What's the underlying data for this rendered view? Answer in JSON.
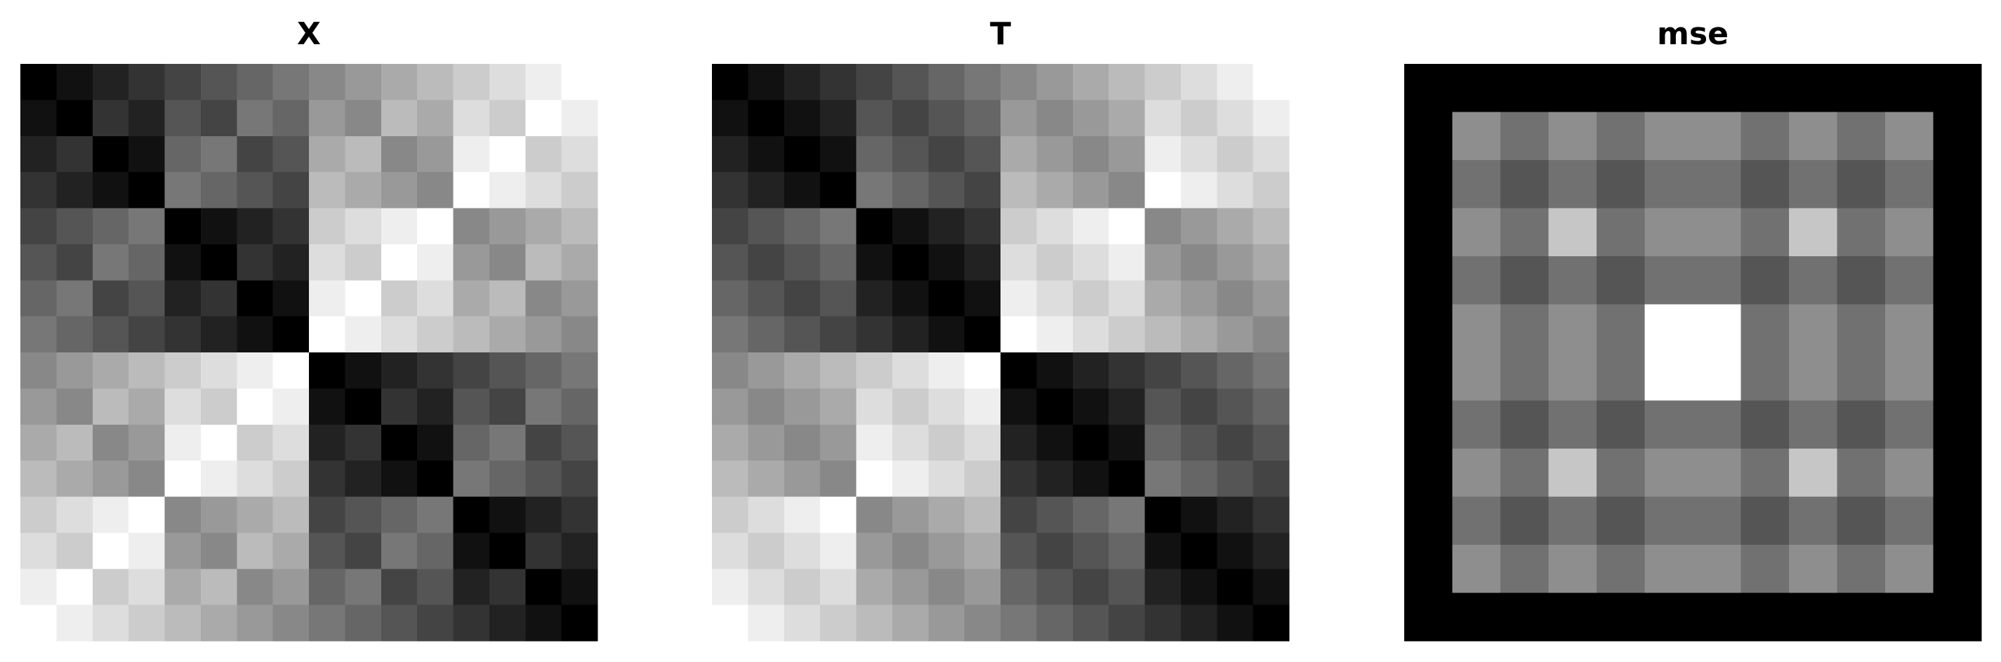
{
  "chart_data": [
    {
      "type": "heatmap",
      "title": "X",
      "colormap": "gray",
      "values": [
        [
          0,
          1,
          2,
          3,
          4,
          5,
          6,
          7,
          8,
          9,
          10,
          11,
          12,
          13,
          14,
          15
        ],
        [
          1,
          0,
          3,
          2,
          5,
          4,
          7,
          6,
          9,
          8,
          11,
          10,
          13,
          12,
          15,
          14
        ],
        [
          2,
          3,
          0,
          1,
          6,
          7,
          4,
          5,
          10,
          11,
          8,
          9,
          14,
          15,
          12,
          13
        ],
        [
          3,
          2,
          1,
          0,
          7,
          6,
          5,
          4,
          11,
          10,
          9,
          8,
          15,
          14,
          13,
          12
        ],
        [
          4,
          5,
          6,
          7,
          0,
          1,
          2,
          3,
          12,
          13,
          14,
          15,
          8,
          9,
          10,
          11
        ],
        [
          5,
          4,
          7,
          6,
          1,
          0,
          3,
          2,
          13,
          12,
          15,
          14,
          9,
          8,
          11,
          10
        ],
        [
          6,
          7,
          4,
          5,
          2,
          3,
          0,
          1,
          14,
          15,
          12,
          13,
          10,
          11,
          8,
          9
        ],
        [
          7,
          6,
          5,
          4,
          3,
          2,
          1,
          0,
          15,
          14,
          13,
          12,
          11,
          10,
          9,
          8
        ],
        [
          8,
          9,
          10,
          11,
          12,
          13,
          14,
          15,
          0,
          1,
          2,
          3,
          4,
          5,
          6,
          7
        ],
        [
          9,
          8,
          11,
          10,
          13,
          12,
          15,
          14,
          1,
          0,
          3,
          2,
          5,
          4,
          7,
          6
        ],
        [
          10,
          11,
          8,
          9,
          14,
          15,
          12,
          13,
          2,
          3,
          0,
          1,
          6,
          7,
          4,
          5
        ],
        [
          11,
          10,
          9,
          8,
          15,
          14,
          13,
          12,
          3,
          2,
          1,
          0,
          7,
          6,
          5,
          4
        ],
        [
          12,
          13,
          14,
          15,
          8,
          9,
          10,
          11,
          4,
          5,
          6,
          7,
          0,
          1,
          2,
          3
        ],
        [
          13,
          12,
          15,
          14,
          9,
          8,
          11,
          10,
          5,
          4,
          7,
          6,
          1,
          0,
          3,
          2
        ],
        [
          14,
          15,
          12,
          13,
          10,
          11,
          8,
          9,
          6,
          7,
          4,
          5,
          2,
          3,
          0,
          1
        ],
        [
          15,
          14,
          13,
          12,
          11,
          10,
          9,
          8,
          7,
          6,
          5,
          4,
          3,
          2,
          1,
          0
        ]
      ]
    },
    {
      "type": "heatmap",
      "title": "T",
      "colormap": "gray",
      "values": [
        [
          0,
          1,
          2,
          3,
          4,
          5,
          6,
          7,
          8,
          9,
          10,
          11,
          12,
          13,
          14,
          15
        ],
        [
          1,
          0,
          1,
          2,
          5,
          4,
          5,
          6,
          9,
          8,
          9,
          10,
          13,
          12,
          13,
          14
        ],
        [
          2,
          1,
          0,
          1,
          6,
          5,
          4,
          5,
          10,
          9,
          8,
          9,
          14,
          13,
          12,
          13
        ],
        [
          3,
          2,
          1,
          0,
          7,
          6,
          5,
          4,
          11,
          10,
          9,
          8,
          15,
          14,
          13,
          12
        ],
        [
          4,
          5,
          6,
          7,
          0,
          1,
          2,
          3,
          12,
          13,
          14,
          15,
          8,
          9,
          10,
          11
        ],
        [
          5,
          4,
          5,
          6,
          1,
          0,
          1,
          2,
          13,
          12,
          13,
          14,
          9,
          8,
          9,
          10
        ],
        [
          6,
          5,
          4,
          5,
          2,
          1,
          0,
          1,
          14,
          13,
          12,
          13,
          10,
          9,
          8,
          9
        ],
        [
          7,
          6,
          5,
          4,
          3,
          2,
          1,
          0,
          15,
          14,
          13,
          12,
          11,
          10,
          9,
          8
        ],
        [
          8,
          9,
          10,
          11,
          12,
          13,
          14,
          15,
          0,
          1,
          2,
          3,
          4,
          5,
          6,
          7
        ],
        [
          9,
          8,
          9,
          10,
          13,
          12,
          13,
          14,
          1,
          0,
          1,
          2,
          5,
          4,
          5,
          6
        ],
        [
          10,
          9,
          8,
          9,
          14,
          13,
          12,
          13,
          2,
          1,
          0,
          1,
          6,
          5,
          4,
          5
        ],
        [
          11,
          10,
          9,
          8,
          15,
          14,
          13,
          12,
          3,
          2,
          1,
          0,
          7,
          6,
          5,
          4
        ],
        [
          12,
          13,
          14,
          15,
          8,
          9,
          10,
          11,
          4,
          5,
          6,
          7,
          0,
          1,
          2,
          3
        ],
        [
          13,
          12,
          13,
          14,
          9,
          8,
          9,
          10,
          5,
          4,
          5,
          6,
          1,
          0,
          1,
          2
        ],
        [
          14,
          13,
          12,
          13,
          10,
          9,
          8,
          9,
          6,
          5,
          4,
          5,
          2,
          1,
          0,
          1
        ],
        [
          15,
          14,
          13,
          12,
          11,
          10,
          9,
          8,
          7,
          6,
          5,
          4,
          3,
          2,
          1,
          0
        ]
      ]
    },
    {
      "type": "heatmap",
      "title": "mse",
      "colormap": "gray",
      "values": [
        [
          1,
          1,
          1,
          1,
          1,
          1,
          1,
          1,
          1,
          1,
          1,
          1
        ],
        [
          1,
          6,
          5,
          6,
          5,
          6,
          6,
          5,
          6,
          5,
          6,
          1
        ],
        [
          1,
          5,
          4,
          5,
          4,
          5,
          5,
          4,
          5,
          4,
          5,
          1
        ],
        [
          1,
          6,
          5,
          8,
          5,
          6,
          6,
          5,
          8,
          5,
          6,
          1
        ],
        [
          1,
          5,
          4,
          5,
          4,
          5,
          5,
          4,
          5,
          4,
          5,
          1
        ],
        [
          1,
          6,
          5,
          6,
          5,
          10,
          10,
          5,
          6,
          5,
          6,
          1
        ],
        [
          1,
          6,
          5,
          6,
          5,
          10,
          10,
          5,
          6,
          5,
          6,
          1
        ],
        [
          1,
          5,
          4,
          5,
          4,
          5,
          5,
          4,
          5,
          4,
          5,
          1
        ],
        [
          1,
          6,
          5,
          8,
          5,
          6,
          6,
          5,
          8,
          5,
          6,
          1
        ],
        [
          1,
          5,
          4,
          5,
          4,
          5,
          5,
          4,
          5,
          4,
          5,
          1
        ],
        [
          1,
          6,
          5,
          6,
          5,
          6,
          6,
          5,
          6,
          5,
          6,
          1
        ],
        [
          1,
          1,
          1,
          1,
          1,
          1,
          1,
          1,
          1,
          1,
          1,
          1
        ]
      ]
    }
  ]
}
